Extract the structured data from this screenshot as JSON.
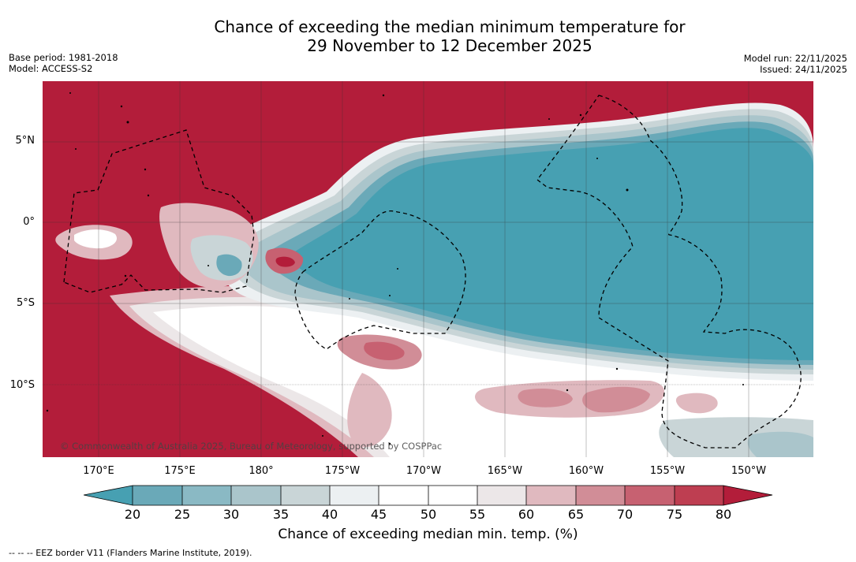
{
  "title": {
    "line1": "Chance of exceeding the median minimum temperature for",
    "line2": "29 November to 12 December 2025"
  },
  "meta_left": {
    "base_period": "Base period: 1981-2018",
    "model": "Model: ACCESS-S2"
  },
  "meta_right": {
    "model_run": "Model run: 22/11/2025",
    "issued": "Issued: 24/11/2025"
  },
  "map": {
    "copyright": "© Commonwealth of Australia 2025, Bureau of Meteorology, supported by COSPPac",
    "latitude_labels": [
      "5°N",
      "0°",
      "5°S",
      "10°S"
    ],
    "longitude_labels": [
      "170°E",
      "175°E",
      "180°",
      "175°W",
      "170°W",
      "165°W",
      "160°W",
      "155°W",
      "150°W"
    ]
  },
  "colorbar": {
    "ticks": [
      "20",
      "25",
      "30",
      "35",
      "40",
      "45",
      "50",
      "55",
      "60",
      "65",
      "70",
      "75",
      "80"
    ],
    "label": "Chance of exceeding median min. temp. (%)",
    "colors": {
      "below_20": "#47a0b2",
      "c20_25": "#6aa9b8",
      "c25_30": "#8ab9c4",
      "c30_35": "#aac5cb",
      "c35_40": "#c9d5d7",
      "c40_45": "#ecf0f2",
      "c45_55": "#ffffff",
      "c55_60": "#ece7e8",
      "c60_65": "#e0b9bf",
      "c65_70": "#d18d97",
      "c70_75": "#c76171",
      "c75_80": "#be3e51",
      "above_80": "#b31d3a"
    }
  },
  "footnote": "--  --  -- EEZ border V11 (Flanders Marine Institute, 2019)."
}
